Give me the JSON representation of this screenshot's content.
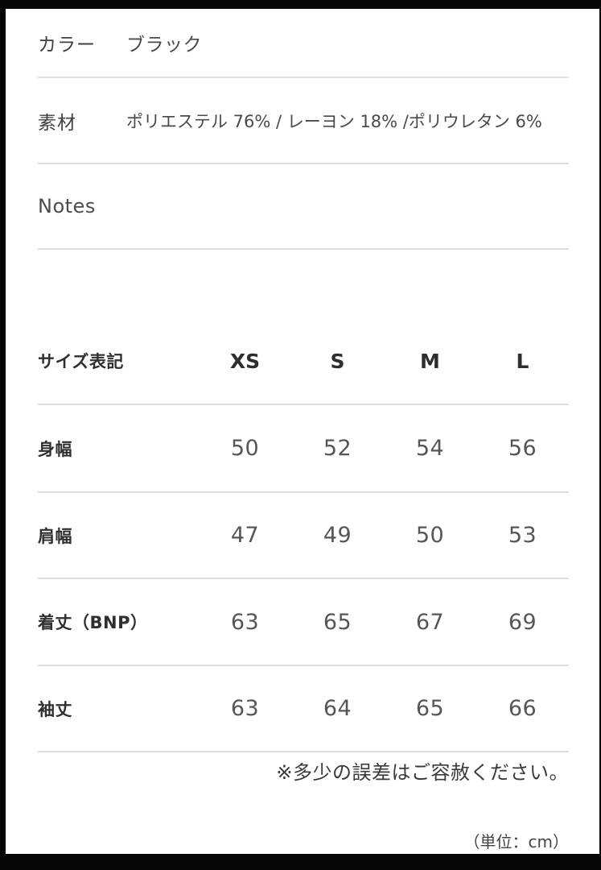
{
  "specs": {
    "color": {
      "label": "カラー",
      "value": "ブラック"
    },
    "material": {
      "label": "素材",
      "value": "ポリエステル 76% / レーヨン 18% /ポリウレタン 6%"
    },
    "notes": {
      "label": "Notes"
    }
  },
  "size_table": {
    "header_label": "サイズ表記",
    "columns": [
      "XS",
      "S",
      "M",
      "L"
    ],
    "rows": [
      {
        "label": "身幅",
        "values": [
          "50",
          "52",
          "54",
          "56"
        ]
      },
      {
        "label": "肩幅",
        "values": [
          "47",
          "49",
          "50",
          "53"
        ]
      },
      {
        "label": "着丈（BNP）",
        "values": [
          "63",
          "65",
          "67",
          "69"
        ]
      },
      {
        "label": "袖丈",
        "values": [
          "63",
          "64",
          "65",
          "66"
        ]
      }
    ],
    "disclaimer": "※多少の誤差はご容赦ください。",
    "unit_note": "（単位：cm）"
  },
  "colors": {
    "frame": "#060606",
    "page_background": "#ffffff",
    "divider": "#dfdfdf",
    "label_text": "#2f2f2f",
    "value_text": "#56565a"
  }
}
